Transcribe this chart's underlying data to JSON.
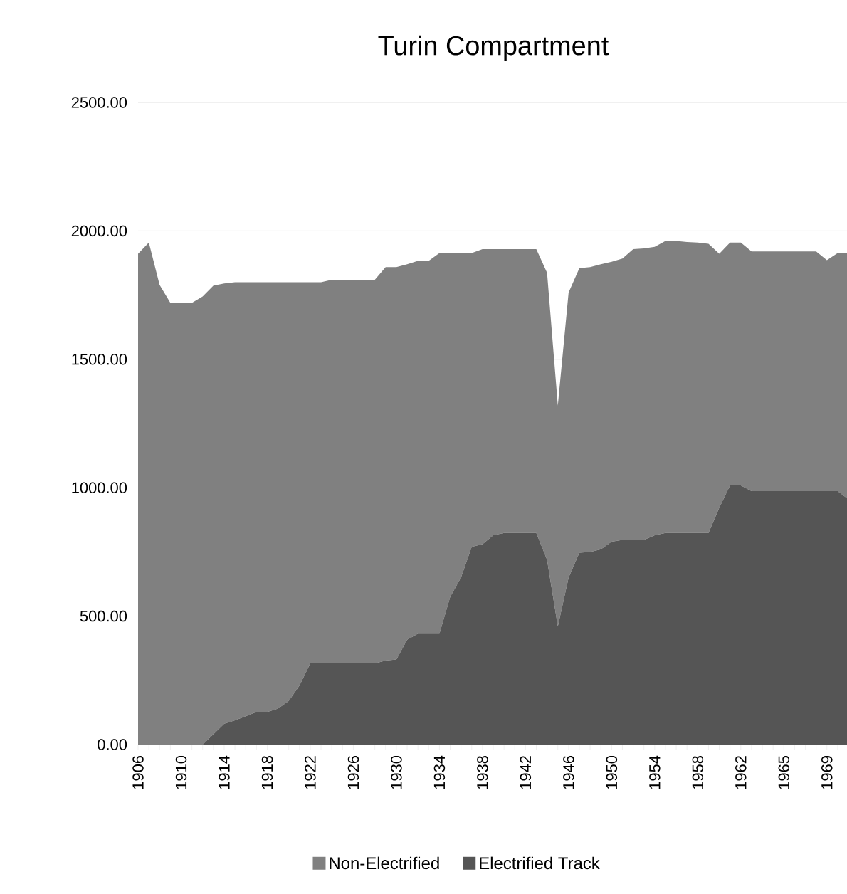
{
  "chart_data": {
    "type": "area",
    "title": "Turin Compartment",
    "stacked": true,
    "grid": "y",
    "legend": "bottom",
    "categories": [
      "1906",
      null,
      null,
      null,
      "1910",
      null,
      null,
      null,
      "1914",
      null,
      null,
      null,
      "1918",
      null,
      null,
      null,
      "1922",
      null,
      null,
      null,
      "1926",
      null,
      null,
      null,
      "1930",
      null,
      null,
      null,
      "1934",
      null,
      null,
      null,
      "1938",
      null,
      null,
      null,
      "1942",
      null,
      null,
      null,
      "1946",
      null,
      null,
      null,
      "1950",
      null,
      null,
      null,
      "1954",
      null,
      null,
      null,
      "1958",
      null,
      null,
      null,
      "1962",
      null,
      null,
      null,
      "1965",
      null,
      null,
      null,
      "1969",
      null,
      null
    ],
    "ylim": [
      0,
      2500
    ],
    "yticks": [
      {
        "value": 0,
        "label": "0.00"
      },
      {
        "value": 500,
        "label": "500.00"
      },
      {
        "value": 1000,
        "label": "1000.00"
      },
      {
        "value": 1500,
        "label": "1500.00"
      },
      {
        "value": 2000,
        "label": "2000.00"
      },
      {
        "value": 2500,
        "label": "2500.00"
      }
    ],
    "series": [
      {
        "name": "Electrified Track",
        "color": "#555555",
        "values": [
          0,
          0,
          0,
          0,
          0,
          0,
          0,
          40,
          81,
          94,
          110,
          127,
          127,
          140,
          170,
          230,
          316,
          316,
          316,
          316,
          316,
          316,
          316,
          327,
          331,
          408,
          432,
          432,
          432,
          575,
          650,
          770,
          780,
          815,
          824,
          824,
          824,
          824,
          719,
          460,
          650,
          747,
          750,
          760,
          790,
          797,
          797,
          797,
          815,
          824,
          824,
          824,
          824,
          824,
          922,
          1009,
          1009,
          987,
          987,
          987,
          987,
          987,
          987,
          987,
          987,
          987,
          955
        ]
      },
      {
        "name": "Non-Electrified",
        "color": "#808080",
        "values": [
          1911,
          1955,
          1790,
          1720,
          1720,
          1720,
          1745,
          1747,
          1714,
          1706,
          1690,
          1673,
          1673,
          1660,
          1630,
          1570,
          1484,
          1484,
          1494,
          1494,
          1494,
          1494,
          1494,
          1532,
          1528,
          1462,
          1451,
          1451,
          1482,
          1339,
          1264,
          1144,
          1149,
          1114,
          1105,
          1105,
          1105,
          1105,
          1118,
          860,
          1110,
          1108,
          1109,
          1110,
          1090,
          1095,
          1132,
          1135,
          1123,
          1137,
          1137,
          1133,
          1131,
          1126,
          989,
          946,
          946,
          933,
          933,
          933,
          933,
          933,
          933,
          933,
          899,
          927,
          959
        ]
      }
    ]
  }
}
